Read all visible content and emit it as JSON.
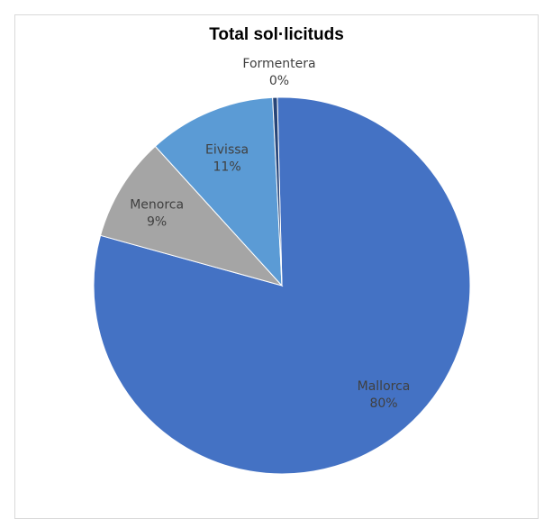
{
  "chart_data": {
    "type": "pie",
    "title": "Total sol·licituds",
    "slices": [
      {
        "label": "Mallorca",
        "pct_label": "80%",
        "value": 80,
        "color": "#4472c4"
      },
      {
        "label": "Menorca",
        "pct_label": "9%",
        "value": 9,
        "color": "#a5a5a5"
      },
      {
        "label": "Eivissa",
        "pct_label": "11%",
        "value": 11,
        "color": "#5b9bd5"
      },
      {
        "label": "Formentera",
        "pct_label": "0%",
        "value": 0.4,
        "color": "#264478"
      }
    ],
    "legend": "none",
    "border_color": "#d9d9d9"
  }
}
